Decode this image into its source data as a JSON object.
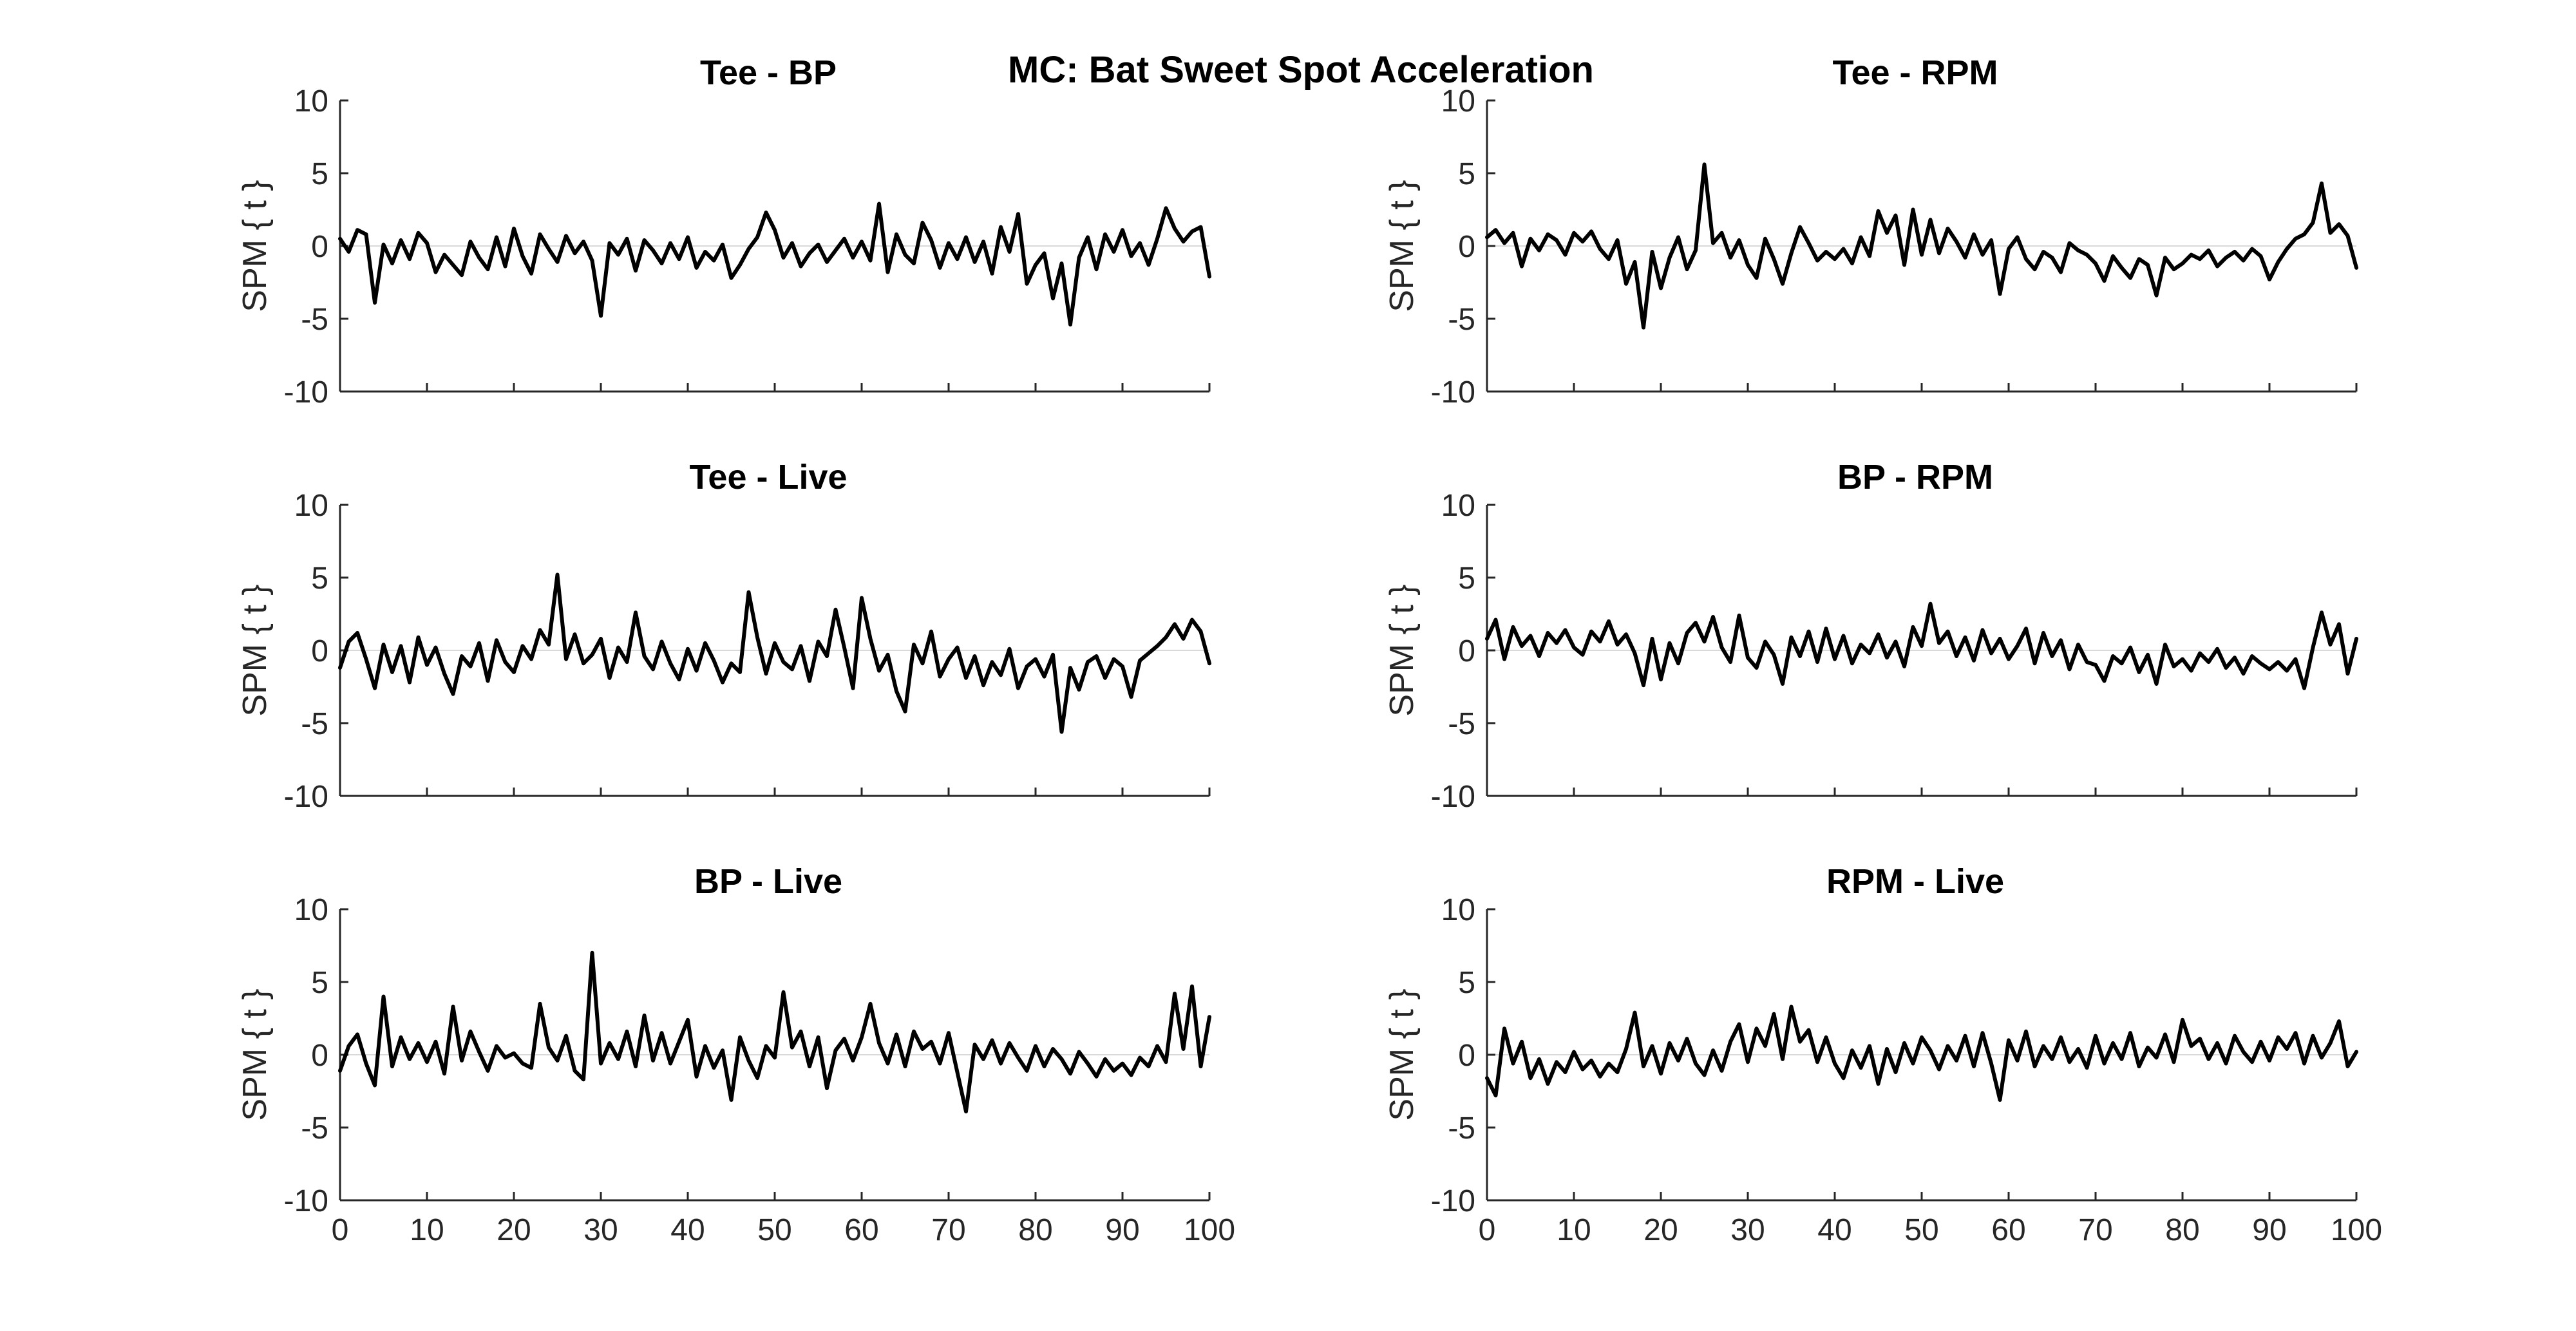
{
  "figure": {
    "suptitle": "MC: Bat Sweet Spot Acceleration"
  },
  "chart_data": [
    {
      "type": "line",
      "title": "Tee - BP",
      "ylabel": "SPM { t }",
      "xlim": [
        0,
        100
      ],
      "ylim": [
        -10,
        10
      ],
      "yticks": [
        "10",
        "5",
        "0",
        "-5",
        "-10"
      ],
      "xticks": [],
      "zero_line": true,
      "color": "#000000",
      "x": [
        0,
        1,
        2,
        3,
        4,
        5,
        6,
        7,
        8,
        9,
        10,
        11,
        12,
        13,
        14,
        15,
        16,
        17,
        18,
        19,
        20,
        21,
        22,
        23,
        24,
        25,
        26,
        27,
        28,
        29,
        30,
        31,
        32,
        33,
        34,
        35,
        36,
        37,
        38,
        39,
        40,
        41,
        42,
        43,
        44,
        45,
        46,
        47,
        48,
        49,
        50,
        51,
        52,
        53,
        54,
        55,
        56,
        57,
        58,
        59,
        60,
        61,
        62,
        63,
        64,
        65,
        66,
        67,
        68,
        69,
        70,
        71,
        72,
        73,
        74,
        75,
        76,
        77,
        78,
        79,
        80,
        81,
        82,
        83,
        84,
        85,
        86,
        87,
        88,
        89,
        90,
        91,
        92,
        93,
        94,
        95,
        96,
        97,
        98,
        99,
        100
      ],
      "values": [
        0.5,
        -0.4,
        1.1,
        0.8,
        -3.9,
        0.1,
        -1.2,
        0.4,
        -0.9,
        0.9,
        0.2,
        -1.8,
        -0.6,
        -1.3,
        -2.0,
        0.3,
        -0.8,
        -1.6,
        0.6,
        -1.4,
        1.2,
        -0.7,
        -1.9,
        0.8,
        -0.2,
        -1.1,
        0.7,
        -0.5,
        0.3,
        -1.0,
        -4.8,
        0.2,
        -0.6,
        0.5,
        -1.7,
        0.4,
        -0.3,
        -1.2,
        0.2,
        -0.9,
        0.6,
        -1.5,
        -0.4,
        -1.0,
        0.1,
        -2.2,
        -1.3,
        -0.2,
        0.6,
        2.3,
        1.1,
        -0.8,
        0.2,
        -1.4,
        -0.5,
        0.1,
        -1.1,
        -0.3,
        0.5,
        -0.8,
        0.3,
        -1.0,
        2.9,
        -1.8,
        0.8,
        -0.6,
        -1.2,
        1.6,
        0.4,
        -1.5,
        0.2,
        -0.9,
        0.6,
        -1.1,
        0.3,
        -1.9,
        1.3,
        -0.4,
        2.2,
        -2.6,
        -1.3,
        -0.5,
        -3.6,
        -1.2,
        -5.4,
        -0.8,
        0.6,
        -1.6,
        0.8,
        -0.4,
        1.1,
        -0.7,
        0.2,
        -1.3,
        0.5,
        2.6,
        1.2,
        0.3,
        1.0,
        1.3,
        -2.1
      ]
    },
    {
      "type": "line",
      "title": "Tee - RPM",
      "ylabel": "SPM { t }",
      "xlim": [
        0,
        100
      ],
      "ylim": [
        -10,
        10
      ],
      "yticks": [
        "10",
        "5",
        "0",
        "-5",
        "-10"
      ],
      "xticks": [],
      "zero_line": true,
      "color": "#000000",
      "x": [
        0,
        1,
        2,
        3,
        4,
        5,
        6,
        7,
        8,
        9,
        10,
        11,
        12,
        13,
        14,
        15,
        16,
        17,
        18,
        19,
        20,
        21,
        22,
        23,
        24,
        25,
        26,
        27,
        28,
        29,
        30,
        31,
        32,
        33,
        34,
        35,
        36,
        37,
        38,
        39,
        40,
        41,
        42,
        43,
        44,
        45,
        46,
        47,
        48,
        49,
        50,
        51,
        52,
        53,
        54,
        55,
        56,
        57,
        58,
        59,
        60,
        61,
        62,
        63,
        64,
        65,
        66,
        67,
        68,
        69,
        70,
        71,
        72,
        73,
        74,
        75,
        76,
        77,
        78,
        79,
        80,
        81,
        82,
        83,
        84,
        85,
        86,
        87,
        88,
        89,
        90,
        91,
        92,
        93,
        94,
        95,
        96,
        97,
        98,
        99,
        100
      ],
      "values": [
        0.6,
        1.1,
        0.2,
        0.9,
        -1.4,
        0.5,
        -0.3,
        0.8,
        0.4,
        -0.6,
        0.9,
        0.3,
        1.0,
        -0.2,
        -0.9,
        0.4,
        -2.6,
        -1.1,
        -5.6,
        -0.4,
        -2.9,
        -0.8,
        0.6,
        -1.6,
        -0.3,
        5.6,
        0.2,
        0.9,
        -0.8,
        0.4,
        -1.3,
        -2.2,
        0.5,
        -0.9,
        -2.6,
        -0.5,
        1.3,
        0.2,
        -1.0,
        -0.4,
        -0.9,
        -0.2,
        -1.2,
        0.6,
        -0.7,
        2.4,
        0.9,
        2.1,
        -1.3,
        2.5,
        -0.6,
        1.8,
        -0.5,
        1.2,
        0.3,
        -0.8,
        0.8,
        -0.6,
        0.4,
        -3.3,
        -0.2,
        0.6,
        -0.9,
        -1.6,
        -0.4,
        -0.8,
        -1.8,
        0.2,
        -0.3,
        -0.6,
        -1.2,
        -2.4,
        -0.7,
        -1.5,
        -2.2,
        -0.9,
        -1.3,
        -3.4,
        -0.8,
        -1.6,
        -1.2,
        -0.6,
        -0.9,
        -0.3,
        -1.4,
        -0.8,
        -0.4,
        -1.0,
        -0.2,
        -0.7,
        -2.3,
        -1.1,
        -0.2,
        0.5,
        0.8,
        1.6,
        4.3,
        0.9,
        1.5,
        0.7,
        -1.5
      ]
    },
    {
      "type": "line",
      "title": "Tee - Live",
      "ylabel": "SPM { t }",
      "xlim": [
        0,
        100
      ],
      "ylim": [
        -10,
        10
      ],
      "yticks": [
        "10",
        "5",
        "0",
        "-5",
        "-10"
      ],
      "xticks": [],
      "zero_line": true,
      "color": "#000000",
      "x": [
        0,
        1,
        2,
        3,
        4,
        5,
        6,
        7,
        8,
        9,
        10,
        11,
        12,
        13,
        14,
        15,
        16,
        17,
        18,
        19,
        20,
        21,
        22,
        23,
        24,
        25,
        26,
        27,
        28,
        29,
        30,
        31,
        32,
        33,
        34,
        35,
        36,
        37,
        38,
        39,
        40,
        41,
        42,
        43,
        44,
        45,
        46,
        47,
        48,
        49,
        50,
        51,
        52,
        53,
        54,
        55,
        56,
        57,
        58,
        59,
        60,
        61,
        62,
        63,
        64,
        65,
        66,
        67,
        68,
        69,
        70,
        71,
        72,
        73,
        74,
        75,
        76,
        77,
        78,
        79,
        80,
        81,
        82,
        83,
        84,
        85,
        86,
        87,
        88,
        89,
        90,
        91,
        92,
        93,
        94,
        95,
        96,
        97,
        98,
        99,
        100
      ],
      "values": [
        -1.2,
        0.6,
        1.2,
        -0.6,
        -2.6,
        0.4,
        -1.5,
        0.3,
        -2.2,
        0.9,
        -1.0,
        0.2,
        -1.6,
        -3.0,
        -0.4,
        -1.1,
        0.5,
        -2.1,
        0.7,
        -0.8,
        -1.5,
        0.3,
        -0.6,
        1.4,
        0.4,
        5.2,
        -0.6,
        1.1,
        -0.9,
        -0.3,
        0.8,
        -1.9,
        0.2,
        -0.8,
        2.6,
        -0.4,
        -1.3,
        0.6,
        -0.9,
        -2.0,
        0.1,
        -1.4,
        0.5,
        -0.7,
        -2.2,
        -0.9,
        -1.5,
        4.0,
        0.9,
        -1.6,
        0.5,
        -0.8,
        -1.3,
        0.3,
        -2.1,
        0.6,
        -0.4,
        2.8,
        0.2,
        -2.6,
        3.6,
        0.8,
        -1.4,
        -0.3,
        -2.8,
        -4.2,
        0.4,
        -0.9,
        1.3,
        -1.8,
        -0.6,
        0.2,
        -1.9,
        -0.4,
        -2.4,
        -0.8,
        -1.7,
        0.1,
        -2.6,
        -1.1,
        -0.6,
        -1.8,
        -0.3,
        -5.6,
        -1.2,
        -2.7,
        -0.8,
        -0.4,
        -1.9,
        -0.6,
        -1.1,
        -3.2,
        -0.7,
        -0.2,
        0.3,
        0.9,
        1.8,
        0.8,
        2.1,
        1.3,
        -0.9
      ]
    },
    {
      "type": "line",
      "title": "BP - RPM",
      "ylabel": "SPM { t }",
      "xlim": [
        0,
        100
      ],
      "ylim": [
        -10,
        10
      ],
      "yticks": [
        "10",
        "5",
        "0",
        "-5",
        "-10"
      ],
      "xticks": [],
      "zero_line": true,
      "color": "#000000",
      "x": [
        0,
        1,
        2,
        3,
        4,
        5,
        6,
        7,
        8,
        9,
        10,
        11,
        12,
        13,
        14,
        15,
        16,
        17,
        18,
        19,
        20,
        21,
        22,
        23,
        24,
        25,
        26,
        27,
        28,
        29,
        30,
        31,
        32,
        33,
        34,
        35,
        36,
        37,
        38,
        39,
        40,
        41,
        42,
        43,
        44,
        45,
        46,
        47,
        48,
        49,
        50,
        51,
        52,
        53,
        54,
        55,
        56,
        57,
        58,
        59,
        60,
        61,
        62,
        63,
        64,
        65,
        66,
        67,
        68,
        69,
        70,
        71,
        72,
        73,
        74,
        75,
        76,
        77,
        78,
        79,
        80,
        81,
        82,
        83,
        84,
        85,
        86,
        87,
        88,
        89,
        90,
        91,
        92,
        93,
        94,
        95,
        96,
        97,
        98,
        99,
        100
      ],
      "values": [
        0.8,
        2.1,
        -0.6,
        1.6,
        0.3,
        1.0,
        -0.4,
        1.2,
        0.5,
        1.4,
        0.2,
        -0.3,
        1.3,
        0.6,
        2.0,
        0.4,
        1.1,
        -0.2,
        -2.4,
        0.8,
        -2.0,
        0.5,
        -0.9,
        1.2,
        1.9,
        0.6,
        2.3,
        0.2,
        -0.8,
        2.4,
        -0.5,
        -1.2,
        0.6,
        -0.3,
        -2.3,
        0.9,
        -0.4,
        1.3,
        -0.8,
        1.5,
        -0.6,
        1.0,
        -0.9,
        0.4,
        -0.2,
        1.1,
        -0.5,
        0.6,
        -1.1,
        1.6,
        0.3,
        3.2,
        0.5,
        1.3,
        -0.4,
        0.9,
        -0.7,
        1.4,
        -0.2,
        0.8,
        -0.6,
        0.3,
        1.5,
        -0.9,
        1.2,
        -0.4,
        0.7,
        -1.3,
        0.4,
        -0.8,
        -1.0,
        -2.1,
        -0.4,
        -0.9,
        0.2,
        -1.5,
        -0.3,
        -2.3,
        0.4,
        -1.1,
        -0.6,
        -1.4,
        -0.2,
        -0.8,
        0.1,
        -1.2,
        -0.5,
        -1.6,
        -0.4,
        -0.9,
        -1.3,
        -0.8,
        -1.4,
        -0.6,
        -2.6,
        0.2,
        2.6,
        0.4,
        1.8,
        -1.6,
        0.8
      ]
    },
    {
      "type": "line",
      "title": "BP - Live",
      "ylabel": "SPM { t }",
      "xlim": [
        0,
        100
      ],
      "ylim": [
        -10,
        10
      ],
      "yticks": [
        "10",
        "5",
        "0",
        "-5",
        "-10"
      ],
      "xticks": [
        "0",
        "10",
        "20",
        "30",
        "40",
        "50",
        "60",
        "70",
        "80",
        "90",
        "100"
      ],
      "zero_line": true,
      "color": "#000000",
      "x": [
        0,
        1,
        2,
        3,
        4,
        5,
        6,
        7,
        8,
        9,
        10,
        11,
        12,
        13,
        14,
        15,
        16,
        17,
        18,
        19,
        20,
        21,
        22,
        23,
        24,
        25,
        26,
        27,
        28,
        29,
        30,
        31,
        32,
        33,
        34,
        35,
        36,
        37,
        38,
        39,
        40,
        41,
        42,
        43,
        44,
        45,
        46,
        47,
        48,
        49,
        50,
        51,
        52,
        53,
        54,
        55,
        56,
        57,
        58,
        59,
        60,
        61,
        62,
        63,
        64,
        65,
        66,
        67,
        68,
        69,
        70,
        71,
        72,
        73,
        74,
        75,
        76,
        77,
        78,
        79,
        80,
        81,
        82,
        83,
        84,
        85,
        86,
        87,
        88,
        89,
        90,
        91,
        92,
        93,
        94,
        95,
        96,
        97,
        98,
        99,
        100
      ],
      "values": [
        -1.1,
        0.6,
        1.4,
        -0.6,
        -2.1,
        4.0,
        -0.8,
        1.2,
        -0.3,
        0.8,
        -0.5,
        0.9,
        -1.3,
        3.3,
        -0.4,
        1.6,
        0.2,
        -1.1,
        0.6,
        -0.2,
        0.1,
        -0.6,
        -0.9,
        3.5,
        0.5,
        -0.4,
        1.3,
        -1.1,
        -1.7,
        7.0,
        -0.6,
        0.8,
        -0.3,
        1.6,
        -0.8,
        2.7,
        -0.4,
        1.5,
        -0.6,
        0.9,
        2.4,
        -1.5,
        0.6,
        -0.9,
        0.3,
        -3.1,
        1.2,
        -0.4,
        -1.6,
        0.6,
        -0.2,
        4.3,
        0.5,
        1.6,
        -0.8,
        1.2,
        -2.3,
        0.3,
        1.1,
        -0.4,
        1.2,
        3.5,
        0.8,
        -0.6,
        1.4,
        -0.8,
        1.6,
        0.4,
        0.9,
        -0.6,
        1.5,
        -1.2,
        -3.9,
        0.7,
        -0.3,
        1.0,
        -0.6,
        0.8,
        -0.2,
        -1.1,
        0.6,
        -0.8,
        0.4,
        -0.3,
        -1.3,
        0.2,
        -0.6,
        -1.5,
        -0.3,
        -1.1,
        -0.6,
        -1.4,
        -0.2,
        -0.8,
        0.6,
        -0.5,
        4.2,
        0.4,
        4.7,
        -0.8,
        2.6
      ]
    },
    {
      "type": "line",
      "title": "RPM - Live",
      "ylabel": "SPM { t }",
      "xlim": [
        0,
        100
      ],
      "ylim": [
        -10,
        10
      ],
      "yticks": [
        "10",
        "5",
        "0",
        "-5",
        "-10"
      ],
      "xticks": [
        "0",
        "10",
        "20",
        "30",
        "40",
        "50",
        "60",
        "70",
        "80",
        "90",
        "100"
      ],
      "zero_line": true,
      "color": "#000000",
      "x": [
        0,
        1,
        2,
        3,
        4,
        5,
        6,
        7,
        8,
        9,
        10,
        11,
        12,
        13,
        14,
        15,
        16,
        17,
        18,
        19,
        20,
        21,
        22,
        23,
        24,
        25,
        26,
        27,
        28,
        29,
        30,
        31,
        32,
        33,
        34,
        35,
        36,
        37,
        38,
        39,
        40,
        41,
        42,
        43,
        44,
        45,
        46,
        47,
        48,
        49,
        50,
        51,
        52,
        53,
        54,
        55,
        56,
        57,
        58,
        59,
        60,
        61,
        62,
        63,
        64,
        65,
        66,
        67,
        68,
        69,
        70,
        71,
        72,
        73,
        74,
        75,
        76,
        77,
        78,
        79,
        80,
        81,
        82,
        83,
        84,
        85,
        86,
        87,
        88,
        89,
        90,
        91,
        92,
        93,
        94,
        95,
        96,
        97,
        98,
        99,
        100
      ],
      "values": [
        -1.6,
        -2.8,
        1.8,
        -0.6,
        0.9,
        -1.6,
        -0.3,
        -2.0,
        -0.5,
        -1.2,
        0.2,
        -1.0,
        -0.4,
        -1.5,
        -0.6,
        -1.2,
        0.4,
        2.9,
        -0.8,
        0.6,
        -1.3,
        0.8,
        -0.4,
        1.1,
        -0.6,
        -1.4,
        0.3,
        -1.1,
        0.9,
        2.1,
        -0.5,
        1.8,
        0.6,
        2.8,
        -0.3,
        3.3,
        0.9,
        1.7,
        -0.5,
        1.2,
        -0.6,
        -1.6,
        0.3,
        -0.9,
        0.6,
        -2.0,
        0.4,
        -1.2,
        0.8,
        -0.6,
        1.2,
        0.3,
        -1.0,
        0.6,
        -0.4,
        1.3,
        -0.8,
        1.5,
        -0.6,
        -3.1,
        1.0,
        -0.4,
        1.6,
        -0.8,
        0.6,
        -0.3,
        1.2,
        -0.5,
        0.4,
        -0.9,
        1.3,
        -0.6,
        0.8,
        -0.3,
        1.5,
        -0.8,
        0.5,
        -0.2,
        1.4,
        -0.5,
        2.4,
        0.6,
        1.1,
        -0.3,
        0.8,
        -0.6,
        1.3,
        0.2,
        -0.5,
        0.9,
        -0.4,
        1.2,
        0.4,
        1.5,
        -0.6,
        1.3,
        -0.2,
        0.8,
        2.3,
        -0.8,
        0.2
      ]
    }
  ]
}
